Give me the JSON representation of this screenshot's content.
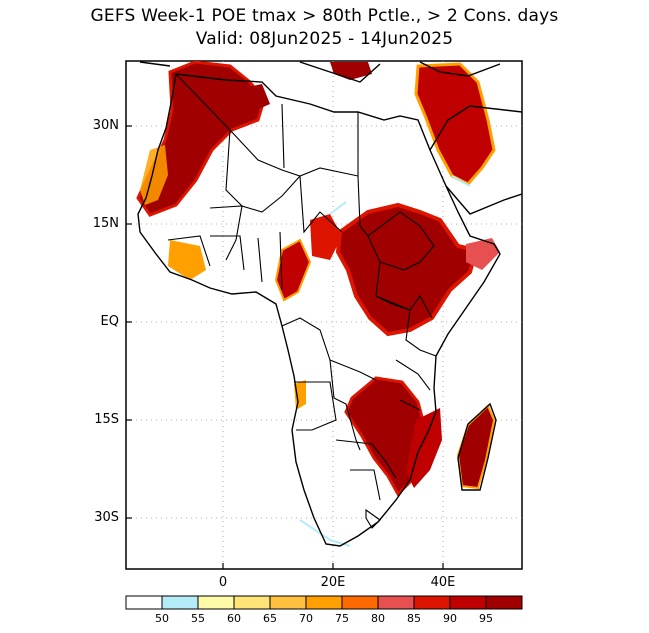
{
  "title": {
    "line1": "GEFS Week-1 POE tmax > 80th Pctle., > 2 Cons. days",
    "line2": "Valid: 08Jun2025 - 14Jun2025"
  },
  "axes": {
    "y_ticks": [
      "30N",
      "15N",
      "EQ",
      "15S",
      "30S"
    ],
    "x_ticks": [
      "0",
      "20E",
      "40E"
    ]
  },
  "colorbar": {
    "colors": [
      "#ffffff",
      "#b4ecf8",
      "#fffaa8",
      "#ffe478",
      "#ffc040",
      "#ffa000",
      "#ff6a00",
      "#e65050",
      "#dc1400",
      "#c00000",
      "#a00000"
    ],
    "labels": [
      "50",
      "55",
      "60",
      "65",
      "70",
      "75",
      "80",
      "85",
      "90",
      "95"
    ]
  }
}
